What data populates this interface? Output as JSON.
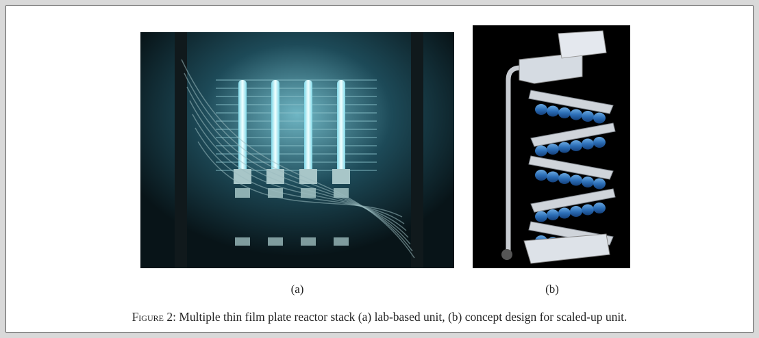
{
  "figure": {
    "panels": [
      {
        "label": "(a)"
      },
      {
        "label": "(b)"
      }
    ],
    "caption": {
      "label": "Figure 2:",
      "text": "Multiple thin film plate reactor stack (a) lab-based unit, (b) concept design for scaled-up unit."
    }
  }
}
